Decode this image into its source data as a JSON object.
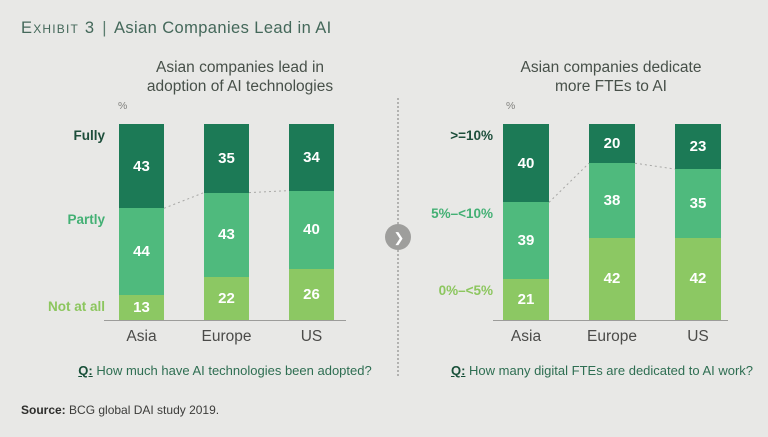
{
  "page": {
    "bg_color": "#e8e8e6",
    "header": {
      "prefix": "Exhibit 3",
      "separator": "|",
      "title": "Asian Companies Lead in AI",
      "color": "#44685a"
    },
    "divider": {
      "icon": "chevron-right",
      "glyph": "❯",
      "circle_color": "#9e9e9c"
    },
    "source": {
      "label": "Source:",
      "text": " BCG global DAI study 2019."
    }
  },
  "colors": {
    "dark_green": "#1c7a56",
    "medium_green": "#4fba7d",
    "light_green": "#8cc863",
    "value_label": "#ffffff",
    "axis_gray": "#9c9c9a"
  },
  "chart_data": [
    {
      "type": "bar",
      "stacked": true,
      "unit": "%",
      "title": "Asian companies lead in adoption of AI technologies",
      "title_lines": [
        "Asian companies lead in",
        "adoption of AI technologies"
      ],
      "categories": [
        "Asia",
        "Europe",
        "US"
      ],
      "series": [
        {
          "name": "Fully",
          "color": "#1c7a56",
          "label_color": "#1d4e3b",
          "values": [
            43,
            35,
            34
          ]
        },
        {
          "name": "Partly",
          "color": "#4fba7d",
          "label_color": "#43b074",
          "values": [
            44,
            43,
            40
          ]
        },
        {
          "name": "Not at all",
          "color": "#8cc863",
          "label_color": "#8cc65e",
          "values": [
            13,
            22,
            26
          ]
        }
      ],
      "ylim": [
        0,
        100
      ],
      "legend_position": "left",
      "grid": false,
      "question_label": "Q:",
      "question": "How much have AI technologies been adopted?"
    },
    {
      "type": "bar",
      "stacked": true,
      "unit": "%",
      "title": "Asian companies dedicate more FTEs to AI",
      "title_lines": [
        "Asian companies dedicate",
        "more FTEs to AI"
      ],
      "categories": [
        "Asia",
        "Europe",
        "US"
      ],
      "series": [
        {
          "name": ">=10%",
          "color": "#1c7a56",
          "label_color": "#1d4e3b",
          "values": [
            40,
            20,
            23
          ]
        },
        {
          "name": "5%–<10%",
          "color": "#4fba7d",
          "label_color": "#43b074",
          "values": [
            39,
            38,
            35
          ]
        },
        {
          "name": "0%–<5%",
          "color": "#8cc863",
          "label_color": "#8cc65e",
          "values": [
            21,
            42,
            42
          ]
        }
      ],
      "ylim": [
        0,
        100
      ],
      "legend_position": "left",
      "grid": false,
      "question_label": "Q:",
      "question": "How many digital FTEs are dedicated to AI work?"
    }
  ]
}
